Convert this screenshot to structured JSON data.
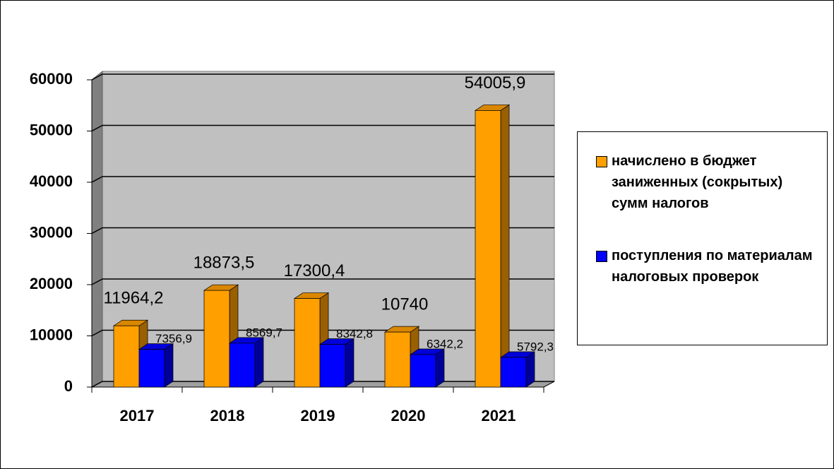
{
  "chart_data": {
    "type": "bar3d",
    "categories": [
      "2017",
      "2018",
      "2019",
      "2020",
      "2021"
    ],
    "series": [
      {
        "name": "начислено в бюджет заниженных (сокрытых) сумм налогов",
        "color": "#FF9F00",
        "values": [
          11964.2,
          18873.5,
          17300.4,
          10740,
          54005.9
        ],
        "value_labels": [
          "11964,2",
          "18873,5",
          "17300,4",
          "10740",
          "54005,9"
        ]
      },
      {
        "name": "поступления по материалам налоговых проверок",
        "color": "#0000FF",
        "values": [
          7356.9,
          8569.7,
          8342.8,
          6342.2,
          5792.3
        ],
        "value_labels": [
          "7356,9",
          "8569,7",
          "8342,8",
          "6342,2",
          "5792,3"
        ]
      }
    ],
    "ylim": [
      0,
      60000
    ],
    "yticks": [
      0,
      10000,
      20000,
      30000,
      40000,
      50000,
      60000
    ],
    "grid": true,
    "legend": "right"
  }
}
